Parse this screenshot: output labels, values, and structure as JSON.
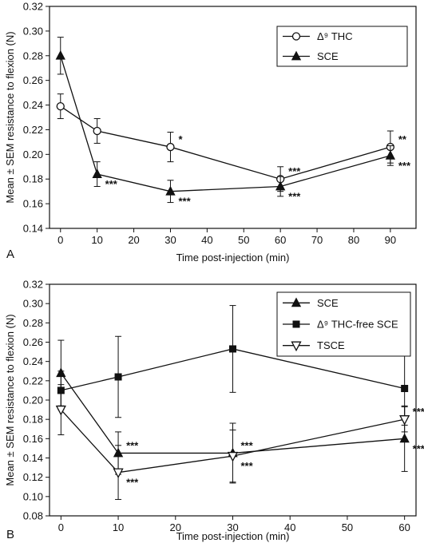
{
  "chart_data": [
    {
      "panel_label": "A",
      "type": "line",
      "xlabel": "Time post-injection (min)",
      "ylabel": "Mean ± SEM resistance to flexion (N)",
      "xlim": [
        -3,
        97
      ],
      "ylim": [
        0.14,
        0.32
      ],
      "xticks": [
        0,
        10,
        20,
        30,
        40,
        50,
        60,
        70,
        80,
        90
      ],
      "yticks": [
        0.14,
        0.16,
        0.18,
        0.2,
        0.22,
        0.24,
        0.26,
        0.28,
        0.3,
        0.32
      ],
      "ytick_labels": [
        "0.14",
        "0.16",
        "0.18",
        "0.20",
        "0.22",
        "0.24",
        "0.26",
        "0.28",
        "0.30",
        "0.32"
      ],
      "legend_position": "top-right",
      "series": [
        {
          "name": "Δ⁹ THC",
          "marker": "circle-open",
          "x": [
            0,
            10,
            30,
            60,
            90
          ],
          "y": [
            0.239,
            0.219,
            0.206,
            0.18,
            0.206
          ],
          "err": [
            0.01,
            0.01,
            0.012,
            0.01,
            0.013
          ]
        },
        {
          "name": "SCE",
          "marker": "triangle-filled",
          "x": [
            0,
            10,
            30,
            60,
            90
          ],
          "y": [
            0.28,
            0.184,
            0.17,
            0.174,
            0.199
          ],
          "err": [
            0.015,
            0.01,
            0.009,
            0.008,
            0.008
          ]
        }
      ],
      "annotations": [
        {
          "text": "*",
          "x": 30,
          "y": 0.206,
          "side": "upper"
        },
        {
          "text": "***",
          "x": 10,
          "y": 0.184,
          "side": "lower"
        },
        {
          "text": "***",
          "x": 30,
          "y": 0.17,
          "side": "lower"
        },
        {
          "text": "***",
          "x": 60,
          "y": 0.18,
          "side": "upper"
        },
        {
          "text": "***",
          "x": 60,
          "y": 0.174,
          "side": "lower"
        },
        {
          "text": "**",
          "x": 90,
          "y": 0.206,
          "side": "upper"
        },
        {
          "text": "***",
          "x": 90,
          "y": 0.199,
          "side": "lower"
        }
      ]
    },
    {
      "panel_label": "B",
      "type": "line",
      "xlabel": "Time post-injection (min)",
      "ylabel": "Mean ± SEM resistance to flexion (N)",
      "xlim": [
        -2,
        62
      ],
      "ylim": [
        0.08,
        0.32
      ],
      "xticks": [
        0,
        10,
        20,
        30,
        40,
        50,
        60
      ],
      "yticks": [
        0.08,
        0.1,
        0.12,
        0.14,
        0.16,
        0.18,
        0.2,
        0.22,
        0.24,
        0.26,
        0.28,
        0.3,
        0.32
      ],
      "ytick_labels": [
        "0.08",
        "0.10",
        "0.12",
        "0.14",
        "0.16",
        "0.18",
        "0.20",
        "0.22",
        "0.24",
        "0.26",
        "0.28",
        "0.30",
        "0.32"
      ],
      "legend_position": "top-right",
      "series": [
        {
          "name": "SCE",
          "marker": "triangle-filled",
          "x": [
            0,
            10,
            30,
            60
          ],
          "y": [
            0.228,
            0.145,
            0.145,
            0.16
          ],
          "err": [
            0.034,
            0.022,
            0.031,
            0.034
          ]
        },
        {
          "name": "Δ⁹ THC-free SCE",
          "marker": "square-filled",
          "x": [
            0,
            10,
            30,
            60
          ],
          "y": [
            0.21,
            0.224,
            0.253,
            0.212
          ],
          "err": [
            0.02,
            0.042,
            0.045,
            0.038
          ]
        },
        {
          "name": "TSCE",
          "marker": "triangle-down-open",
          "x": [
            0,
            10,
            30,
            60
          ],
          "y": [
            0.19,
            0.125,
            0.142,
            0.18
          ],
          "err": [
            0.026,
            0.028,
            0.027,
            0.013
          ]
        }
      ],
      "annotations": [
        {
          "text": "***",
          "x": 10,
          "y": 0.145,
          "side": "upper"
        },
        {
          "text": "***",
          "x": 10,
          "y": 0.125,
          "side": "lower"
        },
        {
          "text": "***",
          "x": 30,
          "y": 0.145,
          "side": "upper"
        },
        {
          "text": "***",
          "x": 30,
          "y": 0.142,
          "side": "lower"
        },
        {
          "text": "***",
          "x": 60,
          "y": 0.18,
          "side": "upper"
        },
        {
          "text": "***",
          "x": 60,
          "y": 0.16,
          "side": "lower"
        }
      ]
    }
  ]
}
